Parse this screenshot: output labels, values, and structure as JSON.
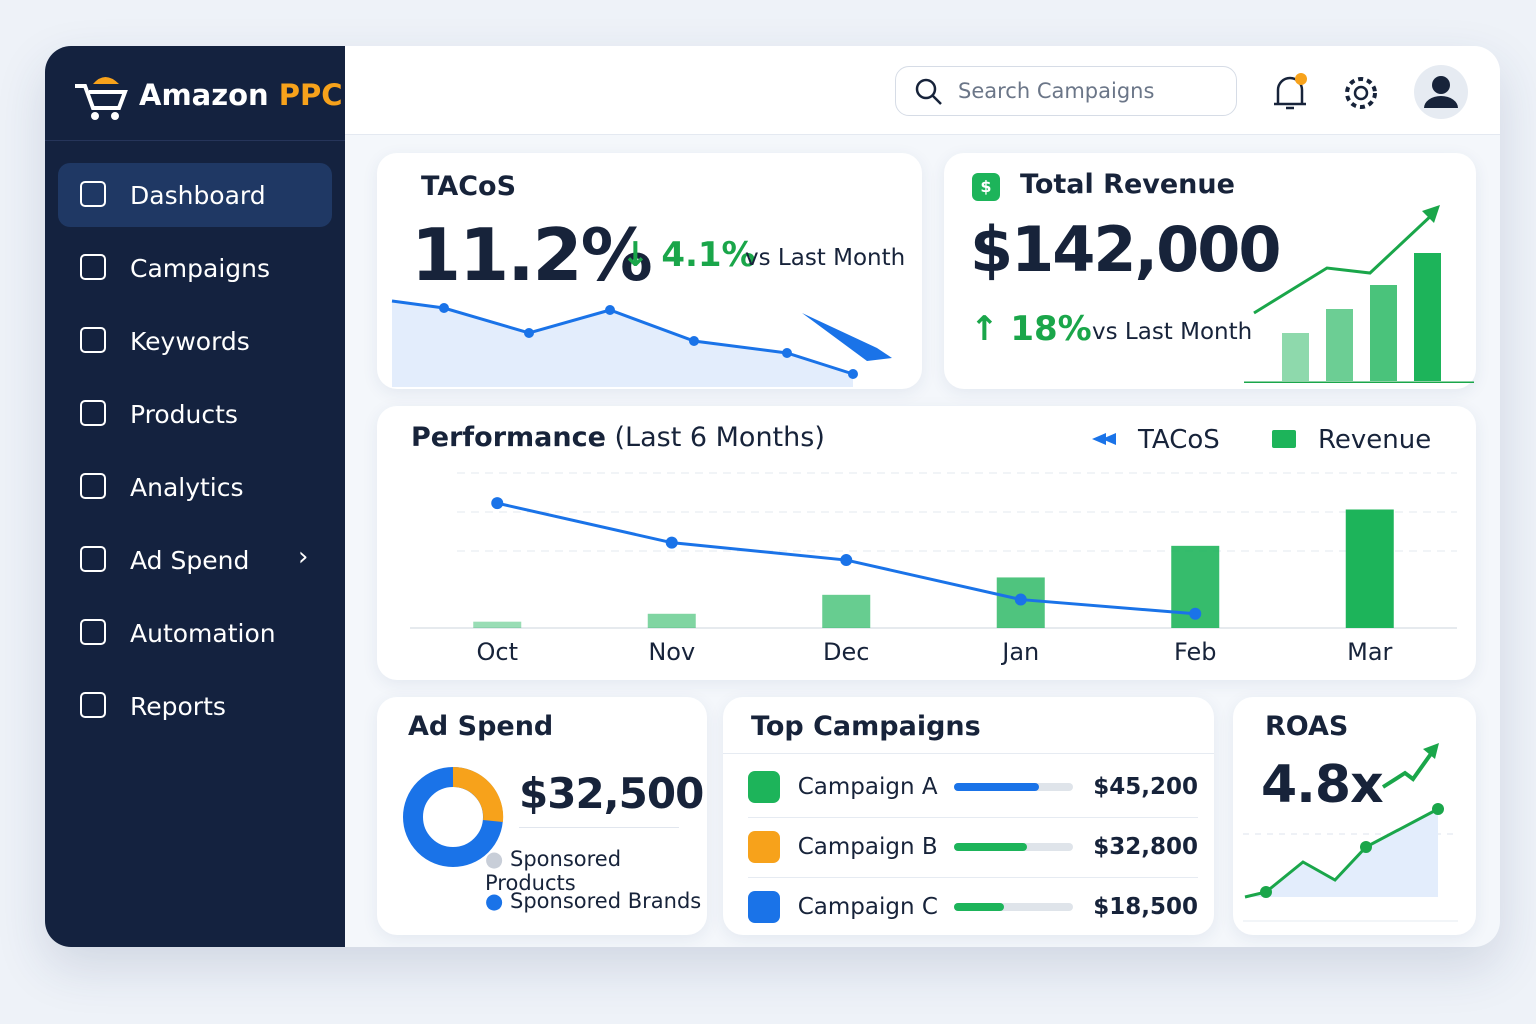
{
  "brand": {
    "name": "Amazon",
    "accent": "PPC"
  },
  "nav": [
    "Dashboard",
    "Campaigns",
    "Keywords",
    "Products",
    "Analytics",
    "Ad Spend",
    "Automation",
    "Reports"
  ],
  "search_placeholder": "Search Campaigns",
  "tacos": {
    "title": "TACoS",
    "value": "11.2%",
    "change": "4.1%",
    "change_label": "vs Last Month"
  },
  "revenue": {
    "title": "Total Revenue",
    "value": "$142,000",
    "change": "18%",
    "change_label": "vs Last Month"
  },
  "chart_data": {
    "type": "combo",
    "title": "Performance",
    "subtitle": "(Last 6 Months)",
    "categories": [
      "Oct",
      "Nov",
      "Dec",
      "Jan",
      "Feb",
      "Mar"
    ],
    "series": [
      {
        "name": "TACoS",
        "color": "#1a73e8",
        "values": [
          79,
          54,
          43,
          18,
          9,
          null
        ]
      },
      {
        "name": "Revenue",
        "color": "#1db45a",
        "values": [
          4,
          9,
          21,
          32,
          52,
          75
        ]
      }
    ],
    "ylim": [
      0,
      100
    ]
  },
  "ad_spend": {
    "title": "Ad Spend",
    "value": "$32,500",
    "legend": [
      "Sponsored Products",
      "Sponsored Brands"
    ]
  },
  "top_campaigns": {
    "title": "Top Campaigns",
    "rows": [
      {
        "name": "Campaign A",
        "value": "$45,200"
      },
      {
        "name": "Campaign B",
        "value": "$32,800"
      },
      {
        "name": "Campaign C",
        "value": "$18,500"
      }
    ]
  },
  "roas": {
    "title": "ROAS",
    "value": "4.8x"
  }
}
